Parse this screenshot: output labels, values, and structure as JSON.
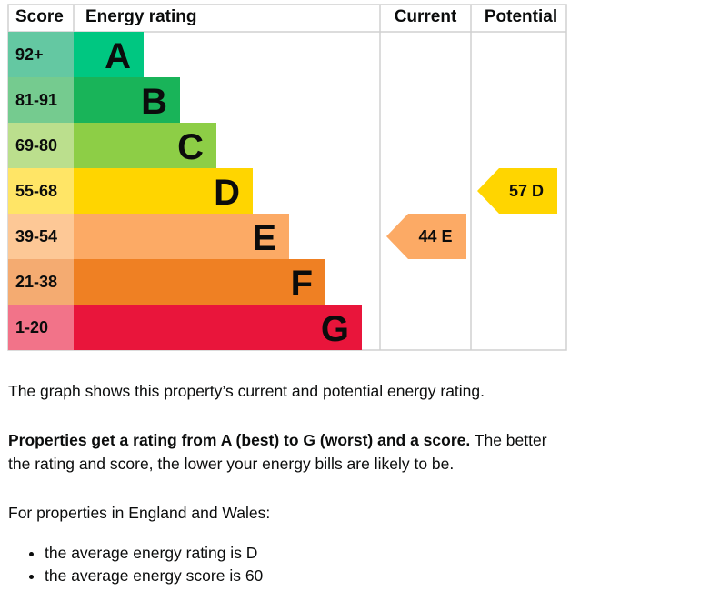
{
  "chart_data": {
    "type": "bar",
    "headers": {
      "score": "Score",
      "rating": "Energy rating",
      "current": "Current",
      "potential": "Potential"
    },
    "bands": [
      {
        "letter": "A",
        "range": "92+",
        "color": "#00c781",
        "light": "#64c8a2"
      },
      {
        "letter": "B",
        "range": "81-91",
        "color": "#19b459",
        "light": "#75cb8f"
      },
      {
        "letter": "C",
        "range": "69-80",
        "color": "#8dce46",
        "light": "#bbdf8d"
      },
      {
        "letter": "D",
        "range": "55-68",
        "color": "#ffd500",
        "light": "#ffe566"
      },
      {
        "letter": "E",
        "range": "39-54",
        "color": "#fcaa65",
        "light": "#fdc896"
      },
      {
        "letter": "F",
        "range": "21-38",
        "color": "#ef8023",
        "light": "#f4ab71"
      },
      {
        "letter": "G",
        "range": "1-20",
        "color": "#e9153b",
        "light": "#f27389"
      }
    ],
    "current": {
      "score": 44,
      "letter": "E",
      "label": "44  E"
    },
    "potential": {
      "score": 57,
      "letter": "D",
      "label": "57  D"
    }
  },
  "text": {
    "p1": "The graph shows this property’s current and potential energy rating.",
    "p2_bold": "Properties get a rating from A (best) to G (worst) and a score.",
    "p2_rest": " The better the rating and score, the lower your energy bills are likely to be.",
    "p3": "For properties in England and Wales:",
    "bullets": [
      "the average energy rating is D",
      "the average energy score is 60"
    ]
  }
}
